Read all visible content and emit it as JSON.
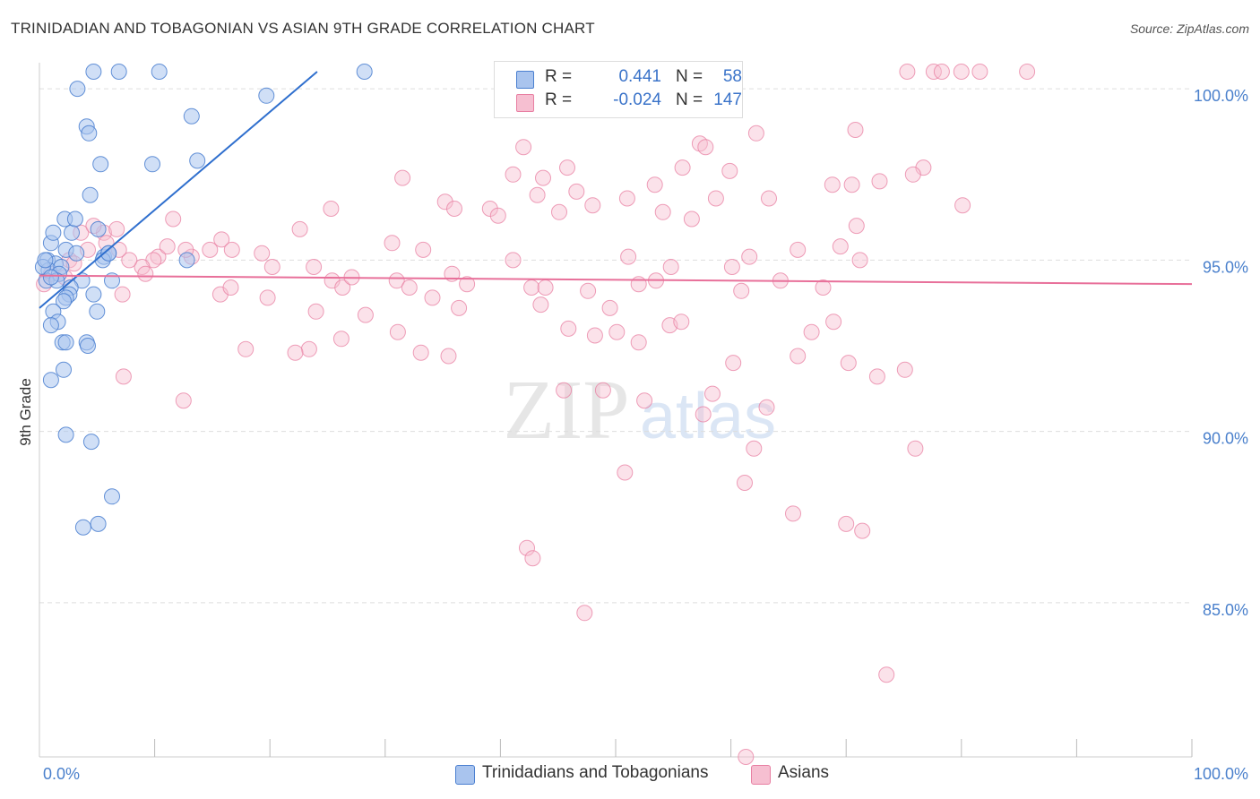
{
  "title": "TRINIDADIAN AND TOBAGONIAN VS ASIAN 9TH GRADE CORRELATION CHART",
  "source": "Source: ZipAtlas.com",
  "legend": {
    "series1": {
      "r_label": "R =",
      "r_value": "0.441",
      "n_label": "N =",
      "n_value": "58"
    },
    "series2": {
      "r_label": "R =",
      "r_value": "-0.024",
      "n_label": "N =",
      "n_value": "147"
    }
  },
  "bottom_legend": {
    "series1": "Trinidadians and Tobagonians",
    "series2": "Asians"
  },
  "colors": {
    "blue_fill": "#a9c4ee",
    "blue_stroke": "#4a7fd0",
    "blue_line": "#2f6fce",
    "pink_fill": "#f6bfd1",
    "pink_stroke": "#e87fa2",
    "pink_line": "#e8709a",
    "axis_text": "#4a80cc",
    "grid": "#dddddd"
  },
  "chart_data": {
    "type": "scatter",
    "title": "TRINIDADIAN AND TOBAGONIAN VS ASIAN 9TH GRADE CORRELATION CHART",
    "xlabel": "",
    "ylabel": "9th Grade",
    "xlim": [
      0,
      100
    ],
    "ylim": [
      80.5,
      100.5
    ],
    "x_tick_labels": [
      "0.0%",
      "100.0%"
    ],
    "y_ticks": [
      85,
      90,
      95,
      100
    ],
    "y_tick_labels": [
      "85.0%",
      "90.0%",
      "95.0%",
      "100.0%"
    ],
    "watermark": {
      "word1": "ZIP",
      "word2": "atlas"
    },
    "series": [
      {
        "name": "Trinidadians and Tobagonians",
        "trend": [
          [
            0,
            93.6
          ],
          [
            24.1,
            100.5
          ]
        ],
        "points": [
          [
            3.3,
            100.0
          ],
          [
            4.7,
            100.5
          ],
          [
            6.9,
            100.5
          ],
          [
            10.4,
            100.5
          ],
          [
            28.2,
            100.5
          ],
          [
            19.7,
            99.8
          ],
          [
            13.2,
            99.2
          ],
          [
            4.1,
            98.9
          ],
          [
            4.3,
            98.7
          ],
          [
            5.3,
            97.8
          ],
          [
            9.8,
            97.8
          ],
          [
            13.7,
            97.9
          ],
          [
            4.4,
            96.9
          ],
          [
            2.2,
            96.2
          ],
          [
            2.8,
            95.8
          ],
          [
            5.1,
            95.9
          ],
          [
            1.0,
            95.5
          ],
          [
            2.3,
            95.3
          ],
          [
            3.2,
            95.2
          ],
          [
            5.6,
            95.1
          ],
          [
            6.0,
            95.2
          ],
          [
            0.7,
            95.0
          ],
          [
            1.4,
            94.9
          ],
          [
            0.8,
            94.7
          ],
          [
            1.9,
            94.8
          ],
          [
            1.7,
            94.6
          ],
          [
            0.6,
            94.4
          ],
          [
            12.8,
            95.0
          ],
          [
            5.5,
            95.0
          ],
          [
            1.5,
            94.4
          ],
          [
            3.7,
            94.4
          ],
          [
            6.3,
            94.4
          ],
          [
            2.7,
            94.2
          ],
          [
            2.6,
            94.0
          ],
          [
            4.7,
            94.0
          ],
          [
            2.3,
            93.9
          ],
          [
            2.1,
            93.8
          ],
          [
            1.2,
            93.5
          ],
          [
            5.0,
            93.5
          ],
          [
            1.6,
            93.2
          ],
          [
            1.0,
            93.1
          ],
          [
            4.1,
            92.6
          ],
          [
            4.2,
            92.5
          ],
          [
            2.0,
            92.6
          ],
          [
            2.3,
            92.6
          ],
          [
            2.1,
            91.8
          ],
          [
            1.0,
            91.5
          ],
          [
            2.3,
            89.9
          ],
          [
            4.5,
            89.7
          ],
          [
            6.3,
            88.1
          ],
          [
            5.1,
            87.3
          ],
          [
            3.8,
            87.2
          ],
          [
            0.3,
            94.8
          ],
          [
            0.5,
            95.0
          ],
          [
            1.2,
            95.8
          ],
          [
            3.1,
            96.2
          ],
          [
            6.0,
            95.2
          ],
          [
            1.0,
            94.5
          ]
        ]
      },
      {
        "name": "Asians",
        "trend": [
          [
            0,
            94.55
          ],
          [
            100,
            94.3
          ]
        ],
        "points": [
          [
            75.3,
            100.5
          ],
          [
            77.6,
            100.5
          ],
          [
            78.3,
            100.5
          ],
          [
            80.0,
            100.5
          ],
          [
            81.6,
            100.5
          ],
          [
            85.7,
            100.5
          ],
          [
            70.8,
            98.8
          ],
          [
            62.2,
            98.7
          ],
          [
            57.3,
            98.4
          ],
          [
            42.0,
            98.3
          ],
          [
            57.8,
            98.3
          ],
          [
            45.8,
            97.7
          ],
          [
            55.8,
            97.7
          ],
          [
            59.9,
            97.6
          ],
          [
            76.7,
            97.7
          ],
          [
            31.5,
            97.4
          ],
          [
            41.1,
            97.5
          ],
          [
            43.7,
            97.4
          ],
          [
            53.4,
            97.2
          ],
          [
            75.8,
            97.5
          ],
          [
            68.8,
            97.2
          ],
          [
            70.5,
            97.2
          ],
          [
            46.6,
            97.0
          ],
          [
            43.2,
            96.9
          ],
          [
            51.0,
            96.8
          ],
          [
            58.7,
            96.8
          ],
          [
            63.3,
            96.8
          ],
          [
            72.9,
            97.3
          ],
          [
            80.1,
            96.6
          ],
          [
            25.3,
            96.5
          ],
          [
            35.2,
            96.7
          ],
          [
            36.0,
            96.5
          ],
          [
            39.1,
            96.5
          ],
          [
            39.8,
            96.3
          ],
          [
            45.1,
            96.4
          ],
          [
            48.0,
            96.6
          ],
          [
            54.1,
            96.4
          ],
          [
            56.6,
            96.2
          ],
          [
            70.9,
            96.0
          ],
          [
            22.6,
            95.9
          ],
          [
            15.8,
            95.6
          ],
          [
            30.6,
            95.5
          ],
          [
            33.3,
            95.3
          ],
          [
            41.1,
            95.0
          ],
          [
            51.1,
            95.1
          ],
          [
            54.8,
            94.8
          ],
          [
            61.6,
            95.1
          ],
          [
            65.8,
            95.3
          ],
          [
            69.5,
            95.4
          ],
          [
            71.2,
            95.0
          ],
          [
            13.2,
            95.1
          ],
          [
            14.8,
            95.3
          ],
          [
            16.7,
            95.3
          ],
          [
            10.3,
            95.1
          ],
          [
            12.7,
            95.3
          ],
          [
            11.1,
            95.4
          ],
          [
            9.9,
            95.0
          ],
          [
            8.9,
            94.8
          ],
          [
            7.8,
            95.0
          ],
          [
            6.9,
            95.3
          ],
          [
            19.3,
            95.2
          ],
          [
            20.2,
            94.8
          ],
          [
            23.8,
            94.8
          ],
          [
            25.4,
            94.4
          ],
          [
            26.3,
            94.2
          ],
          [
            27.1,
            94.5
          ],
          [
            31.0,
            94.4
          ],
          [
            32.1,
            94.2
          ],
          [
            35.8,
            94.6
          ],
          [
            37.1,
            94.3
          ],
          [
            42.7,
            94.2
          ],
          [
            43.9,
            94.2
          ],
          [
            47.6,
            94.1
          ],
          [
            52.0,
            94.3
          ],
          [
            53.5,
            94.4
          ],
          [
            60.9,
            94.1
          ],
          [
            64.3,
            94.4
          ],
          [
            68.0,
            94.2
          ],
          [
            15.7,
            94.0
          ],
          [
            16.6,
            94.2
          ],
          [
            24.0,
            93.5
          ],
          [
            28.3,
            93.4
          ],
          [
            34.1,
            93.9
          ],
          [
            36.4,
            93.6
          ],
          [
            43.5,
            93.7
          ],
          [
            49.5,
            93.6
          ],
          [
            54.7,
            93.1
          ],
          [
            55.7,
            93.2
          ],
          [
            67.0,
            92.9
          ],
          [
            68.9,
            93.2
          ],
          [
            31.1,
            92.9
          ],
          [
            26.2,
            92.7
          ],
          [
            33.1,
            92.3
          ],
          [
            45.9,
            93.0
          ],
          [
            48.2,
            92.8
          ],
          [
            50.1,
            92.9
          ],
          [
            52.0,
            92.6
          ],
          [
            17.9,
            92.4
          ],
          [
            23.4,
            92.4
          ],
          [
            35.5,
            92.2
          ],
          [
            60.2,
            92.0
          ],
          [
            65.8,
            92.2
          ],
          [
            70.2,
            92.0
          ],
          [
            72.7,
            91.6
          ],
          [
            75.1,
            91.8
          ],
          [
            7.2,
            94.0
          ],
          [
            9.2,
            94.6
          ],
          [
            11.6,
            96.2
          ],
          [
            5.6,
            95.8
          ],
          [
            6.7,
            95.9
          ],
          [
            3.6,
            95.8
          ],
          [
            4.2,
            95.3
          ],
          [
            2.6,
            95.0
          ],
          [
            3.0,
            94.9
          ],
          [
            2.2,
            94.5
          ],
          [
            0.4,
            94.3
          ],
          [
            1.0,
            94.6
          ],
          [
            5.8,
            95.5
          ],
          [
            4.7,
            96.0
          ],
          [
            45.5,
            91.2
          ],
          [
            48.9,
            91.2
          ],
          [
            58.4,
            91.1
          ],
          [
            63.1,
            90.7
          ],
          [
            52.5,
            90.9
          ],
          [
            57.6,
            90.5
          ],
          [
            62.0,
            89.5
          ],
          [
            76.0,
            89.5
          ],
          [
            50.8,
            88.8
          ],
          [
            61.2,
            88.5
          ],
          [
            65.4,
            87.6
          ],
          [
            70.0,
            87.3
          ],
          [
            71.4,
            87.1
          ],
          [
            42.3,
            86.6
          ],
          [
            42.8,
            86.3
          ],
          [
            47.3,
            84.7
          ],
          [
            73.5,
            82.9
          ],
          [
            61.3,
            80.5
          ],
          [
            7.3,
            91.6
          ],
          [
            12.5,
            90.9
          ],
          [
            19.8,
            93.9
          ],
          [
            22.2,
            92.3
          ],
          [
            60.1,
            94.8
          ]
        ]
      }
    ]
  }
}
